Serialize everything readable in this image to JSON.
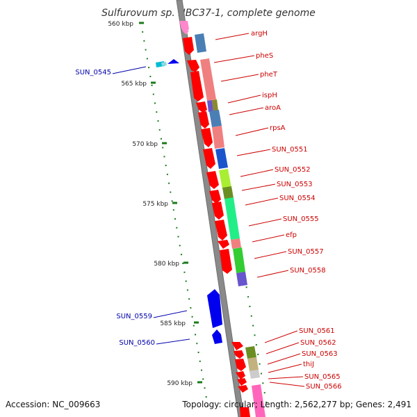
{
  "title": "Sulfurovum sp. NBC37-1, complete genome",
  "footer": {
    "accession": "Accession: NC_009663",
    "summary": "Topology: circular; Length: 2,562,277 bp; Genes: 2,491"
  },
  "colors": {
    "backbone": "#8c8c8c",
    "tick": "#1a7a1a",
    "forward_label": "#cc0000",
    "reverse_label": "#0000aa"
  },
  "position_ticks": [
    {
      "label": "560 kbp"
    },
    {
      "label": "565 kbp"
    },
    {
      "label": "570 kbp"
    },
    {
      "label": "575 kbp"
    },
    {
      "label": "580 kbp"
    },
    {
      "label": "585 kbp"
    },
    {
      "label": "590 kbp"
    }
  ],
  "gene_labels_right": [
    {
      "name": "argH"
    },
    {
      "name": "pheS"
    },
    {
      "name": "pheT"
    },
    {
      "name": "ispH"
    },
    {
      "name": "aroA"
    },
    {
      "name": "rpsA"
    },
    {
      "name": "SUN_0551"
    },
    {
      "name": "SUN_0552"
    },
    {
      "name": "SUN_0553"
    },
    {
      "name": "SUN_0554"
    },
    {
      "name": "SUN_0555"
    },
    {
      "name": "efp"
    },
    {
      "name": "SUN_0557"
    },
    {
      "name": "SUN_0558"
    },
    {
      "name": "SUN_0561"
    },
    {
      "name": "SUN_0562"
    },
    {
      "name": "SUN_0563"
    },
    {
      "name": "thiJ"
    },
    {
      "name": "SUN_0565"
    },
    {
      "name": "SUN_0566"
    }
  ],
  "gene_labels_left": [
    {
      "name": "SUN_0545"
    },
    {
      "name": "SUN_0559"
    },
    {
      "name": "SUN_0560"
    }
  ]
}
